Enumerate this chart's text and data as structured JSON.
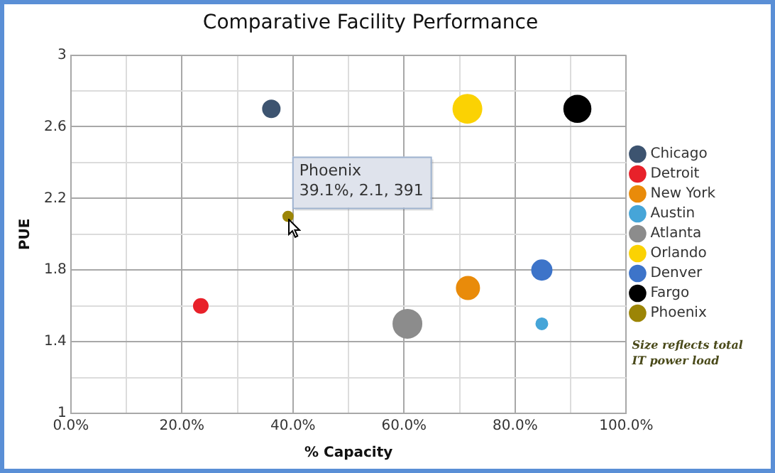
{
  "chart_data": {
    "type": "bubble",
    "title": "Comparative Facility Performance",
    "xlabel": "% Capacity",
    "ylabel": "PUE",
    "xlim": [
      0,
      100
    ],
    "xticks": [
      {
        "value": 0,
        "label": "0.0%"
      },
      {
        "value": 10,
        "label": null
      },
      {
        "value": 20,
        "label": "20.0%"
      },
      {
        "value": 30,
        "label": null
      },
      {
        "value": 40,
        "label": "40.0%"
      },
      {
        "value": 50,
        "label": null
      },
      {
        "value": 60,
        "label": "60.0%"
      },
      {
        "value": 70,
        "label": null
      },
      {
        "value": 80,
        "label": "80.0%"
      },
      {
        "value": 90,
        "label": null
      },
      {
        "value": 100,
        "label": "100.0%"
      }
    ],
    "ylim": [
      1,
      3
    ],
    "yticks": [
      1,
      {
        "value": 1.2,
        "label": null
      },
      1.4,
      {
        "value": 1.6,
        "label": null
      },
      1.8,
      {
        "value": 2.0,
        "label": null
      },
      2.2,
      {
        "value": 2.4,
        "label": null
      },
      2.6,
      {
        "value": 2.8,
        "label": null
      },
      3
    ],
    "grid": true,
    "legend": "right",
    "marker": "circle",
    "series": [
      {
        "name": "Chicago",
        "color": "#3d5470",
        "x": [
          36.1
        ],
        "values": [
          2.7
        ],
        "sizes": [
          0.36
        ]
      },
      {
        "name": "Detroit",
        "color": "#e8212a",
        "x": [
          23.4
        ],
        "values": [
          1.6
        ],
        "sizes": [
          0.25
        ]
      },
      {
        "name": "New York",
        "color": "#e98b0a",
        "x": [
          71.5
        ],
        "values": [
          1.7
        ],
        "sizes": [
          0.64
        ]
      },
      {
        "name": "Austin",
        "color": "#46a5d8",
        "x": [
          84.8
        ],
        "values": [
          1.5
        ],
        "sizes": [
          0.16
        ]
      },
      {
        "name": "Atlanta",
        "color": "#8c8c8c",
        "x": [
          60.6
        ],
        "values": [
          1.5
        ],
        "sizes": [
          1
        ]
      },
      {
        "name": "Orlando",
        "color": "#fbd203",
        "x": [
          71.4
        ],
        "values": [
          2.7
        ],
        "sizes": [
          1
        ]
      },
      {
        "name": "Denver",
        "color": "#3d74c9",
        "x": [
          84.8
        ],
        "values": [
          1.8
        ],
        "sizes": [
          0.49
        ]
      },
      {
        "name": "Fargo",
        "color": "#000000",
        "x": [
          91.2
        ],
        "values": [
          2.7
        ],
        "sizes": [
          0.88
        ]
      },
      {
        "name": "Phoenix",
        "color": "#9c8506",
        "x": [
          39.1
        ],
        "values": [
          2.1
        ],
        "sizes": [
          0.12
        ]
      }
    ],
    "annotations": [
      {
        "text": "Phoenix\n39.1%, 2.1, 391",
        "x": 39.1,
        "y": 2.1
      },
      "Size reflects total\nIT power load"
    ]
  }
}
